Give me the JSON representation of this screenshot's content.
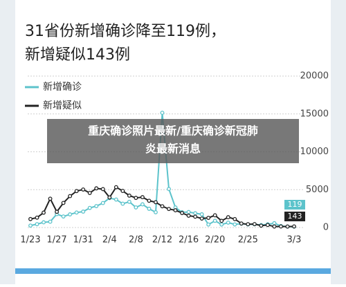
{
  "chart_data": {
    "type": "line",
    "title": [
      "31省份新增确诊降至119例，",
      "新增疑似143例"
    ],
    "categories": [
      "1/23",
      null,
      null,
      null,
      "1/27",
      null,
      null,
      null,
      "1/31",
      null,
      null,
      null,
      "2/4",
      null,
      null,
      null,
      "2/8",
      null,
      null,
      null,
      "2/12",
      null,
      null,
      null,
      "2/16",
      null,
      null,
      null,
      "2/20",
      null,
      null,
      null,
      null,
      "2/25",
      null,
      null,
      null,
      null,
      null,
      null,
      "3/3"
    ],
    "series": [
      {
        "name": "新增确诊",
        "color": "#5cc3cb",
        "values": [
          259,
          444,
          688,
          769,
          1771,
          1459,
          1737,
          1982,
          2102,
          2590,
          2829,
          3235,
          3887,
          3694,
          3143,
          3399,
          2656,
          3062,
          2478,
          2015,
          15152,
          5090,
          2641,
          2009,
          2048,
          1886,
          1749,
          394,
          889,
          397,
          648,
          409,
          508,
          406,
          433,
          327,
          427,
          573,
          202,
          125,
          119
        ]
      },
      {
        "name": "新增疑似",
        "color": "#222222",
        "values": [
          1118,
          1309,
          1965,
          3806,
          2077,
          3248,
          4148,
          4812,
          5019,
          4562,
          5173,
          5072,
          3971,
          5328,
          4833,
          4214,
          3916,
          4008,
          3536,
          3342,
          2807,
          2450,
          2277,
          1918,
          1563,
          1432,
          1185,
          1277,
          1614,
          882,
          1361,
          1114,
          530,
          439,
          452,
          248,
          335,
          132,
          141,
          129,
          143
        ]
      }
    ],
    "ylim": [
      0,
      20000
    ],
    "yticks": [
      0,
      5000,
      10000,
      15000,
      20000
    ],
    "grid": true,
    "caption": [
      "重庆确诊照片最新/重庆确诊新冠肺",
      "炎最新消息"
    ]
  }
}
